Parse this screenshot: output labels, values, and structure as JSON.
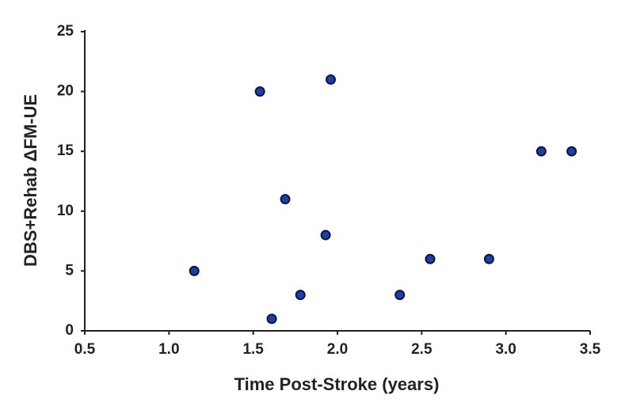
{
  "chart_data": {
    "type": "scatter",
    "x_label": "Time Post-Stroke (years)",
    "y_label": "DBS+Rehab ΔFM-UE",
    "x": [
      1.15,
      1.54,
      1.61,
      1.69,
      1.78,
      1.93,
      1.96,
      2.37,
      2.55,
      2.9,
      3.21,
      3.39
    ],
    "values": [
      5,
      20,
      1,
      11,
      3,
      8,
      21,
      3,
      6,
      6,
      15,
      15
    ],
    "color": "#1f3fa8",
    "xlim": [
      0.5,
      3.5
    ],
    "xticks": [
      0.5,
      {
        "value": 1,
        "label": "1.0"
      },
      1.5,
      {
        "value": 2,
        "label": "2.0"
      },
      2.5,
      {
        "value": 3,
        "label": "3.0"
      },
      3.5
    ],
    "ylim": [
      0,
      25
    ],
    "yticks": [
      0,
      5,
      10,
      15,
      20,
      25
    ],
    "grid": false
  }
}
